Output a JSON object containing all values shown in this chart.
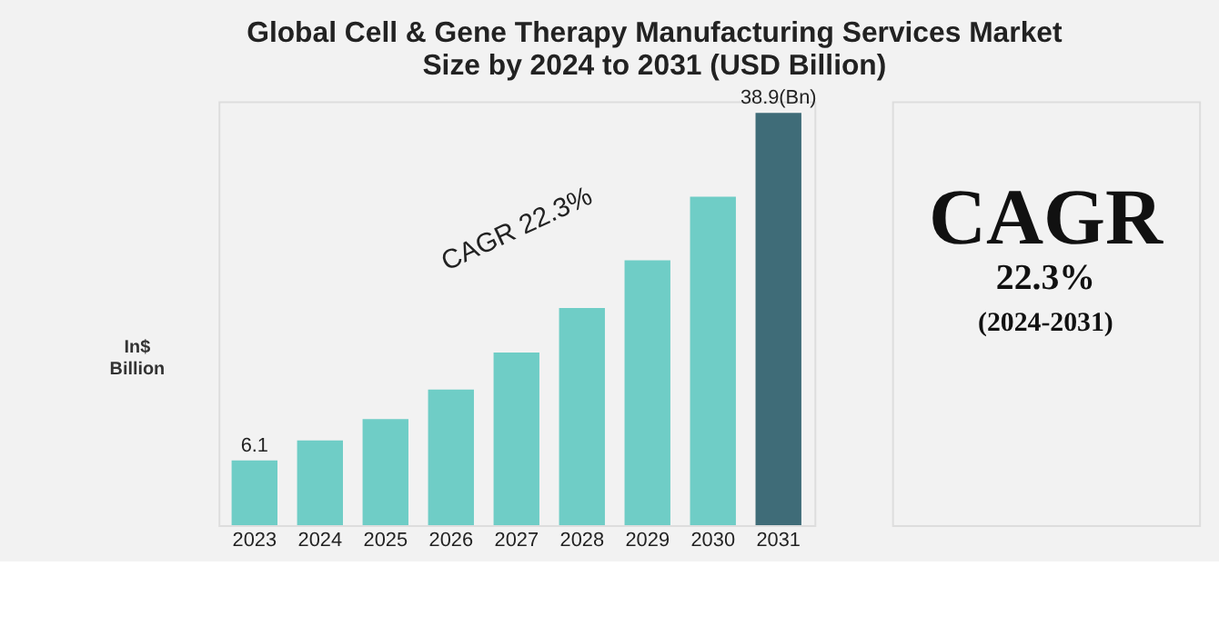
{
  "chart_data": {
    "type": "bar",
    "title": [
      "Global Cell & Gene Therapy Manufacturing Services Market",
      "Size by 2024 to 2031 (USD Billion)"
    ],
    "ylabel": "In$ Billion",
    "categories": [
      "2023",
      "2024",
      "2025",
      "2026",
      "2027",
      "2028",
      "2029",
      "2030",
      "2031"
    ],
    "values": [
      6.1,
      8.0,
      10.0,
      12.8,
      16.3,
      20.5,
      25.0,
      31.0,
      38.9
    ],
    "colors": [
      "#6fcdc6",
      "#6fcdc6",
      "#6fcdc6",
      "#6fcdc6",
      "#6fcdc6",
      "#6fcdc6",
      "#6fcdc6",
      "#6fcdc6",
      "#3f6c78"
    ],
    "value_labels": [
      "6.1",
      null,
      null,
      null,
      null,
      null,
      null,
      null,
      "38.9(Bn)"
    ],
    "annotations": [
      "CAGR 22.3%",
      "CAGR",
      "22.3%",
      "(2024-2031)"
    ],
    "grid": false
  }
}
